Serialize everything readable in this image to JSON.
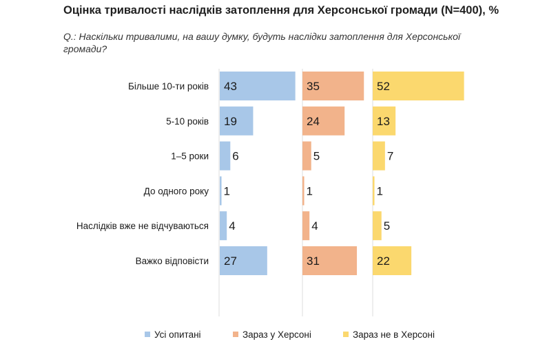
{
  "chart_data": {
    "type": "bar",
    "orientation": "horizontal",
    "title": "Оцінка тривалості наслідків затоплення для Херсонської громади (N=400), %",
    "subtitle": "Q.: Наскільки тривалими, на вашу думку, будуть наслідки затоплення для Херсонської громади?",
    "categories": [
      "Більше 10-ти років",
      "5-10 років",
      "1–5 роки",
      "До одного року",
      "Наслідків вже не відчуваються",
      "Важко відповісти"
    ],
    "series": [
      {
        "name": "Усі опитані",
        "color": "#a8c7e8",
        "values": [
          43,
          19,
          6,
          1,
          4,
          27
        ]
      },
      {
        "name": "Зараз у Херсоні",
        "color": "#f2b38b",
        "values": [
          35,
          24,
          5,
          1,
          4,
          31
        ]
      },
      {
        "name": "Зараз не в Херсоні",
        "color": "#fbd86e",
        "values": [
          52,
          13,
          7,
          1,
          5,
          22
        ]
      }
    ],
    "xlim": [
      0,
      55
    ],
    "legend": "bottom",
    "grid": false
  }
}
